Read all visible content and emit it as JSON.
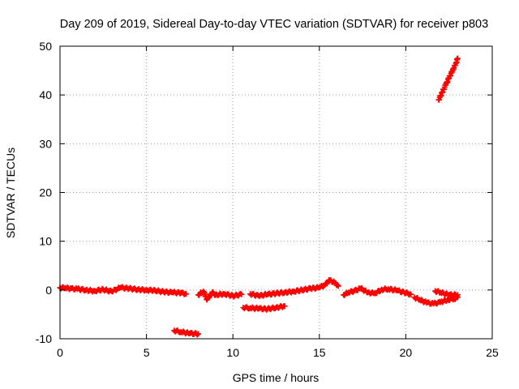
{
  "chart_data": {
    "type": "scatter",
    "title": "Day 209 of 2019, Sidereal Day-to-day VTEC variation (SDTVAR) for receiver p803",
    "xlabel": "GPS time / hours",
    "ylabel": "SDTVAR / TECUs",
    "xlim": [
      0,
      25
    ],
    "ylim": [
      -10,
      50
    ],
    "xticks": [
      0,
      5,
      10,
      15,
      20,
      25
    ],
    "yticks": [
      -10,
      0,
      10,
      20,
      30,
      40,
      50
    ],
    "grid": true,
    "legend": "none",
    "series": [
      {
        "color": "#ff0000",
        "marker": "plus",
        "segments": [
          {
            "points": [
              [
                0.0,
                0.5
              ],
              [
                0.3,
                0.4
              ],
              [
                0.6,
                0.3
              ],
              [
                1.0,
                0.2
              ],
              [
                1.5,
                0.0
              ],
              [
                2.0,
                -0.2
              ],
              [
                2.5,
                0.1
              ],
              [
                3.0,
                -0.3
              ],
              [
                3.5,
                0.5
              ],
              [
                4.0,
                0.3
              ],
              [
                4.5,
                0.1
              ],
              [
                5.0,
                0.0
              ],
              [
                5.5,
                -0.1
              ],
              [
                6.0,
                -0.4
              ],
              [
                6.5,
                -0.5
              ],
              [
                7.0,
                -0.6
              ],
              [
                7.3,
                -0.8
              ]
            ]
          },
          {
            "points": [
              [
                8.0,
                -1.0
              ],
              [
                8.3,
                -0.3
              ],
              [
                8.5,
                -2.0
              ],
              [
                8.8,
                -0.5
              ],
              [
                9.0,
                -1.0
              ],
              [
                9.5,
                -0.8
              ],
              [
                10.0,
                -1.2
              ],
              [
                10.5,
                -0.9
              ]
            ]
          },
          {
            "points": [
              [
                11.0,
                -0.8
              ],
              [
                11.5,
                -1.2
              ],
              [
                12.0,
                -0.9
              ],
              [
                12.5,
                -0.7
              ],
              [
                13.0,
                -0.5
              ],
              [
                13.5,
                -0.3
              ],
              [
                14.0,
                0.0
              ],
              [
                14.5,
                0.3
              ],
              [
                15.0,
                0.5
              ],
              [
                15.3,
                1.0
              ],
              [
                15.6,
                2.0
              ],
              [
                15.9,
                1.5
              ],
              [
                16.1,
                0.8
              ]
            ]
          },
          {
            "points": [
              [
                16.4,
                -1.0
              ],
              [
                16.7,
                -0.5
              ],
              [
                17.0,
                -0.2
              ],
              [
                17.4,
                0.3
              ],
              [
                17.8,
                -0.5
              ],
              [
                18.2,
                -0.7
              ],
              [
                18.6,
                0.1
              ],
              [
                19.0,
                0.2
              ],
              [
                19.5,
                -0.1
              ],
              [
                20.0,
                -0.6
              ],
              [
                20.3,
                -0.9
              ]
            ]
          },
          {
            "points": [
              [
                20.5,
                -1.5
              ],
              [
                20.8,
                -2.0
              ],
              [
                21.2,
                -2.6
              ],
              [
                21.6,
                -2.8
              ],
              [
                22.0,
                -2.5
              ],
              [
                22.4,
                -2.0
              ],
              [
                22.8,
                -1.8
              ],
              [
                23.0,
                -1.5
              ]
            ]
          },
          {
            "points": [
              [
                21.7,
                -0.2
              ],
              [
                22.0,
                -0.5
              ],
              [
                22.5,
                -1.0
              ],
              [
                23.0,
                -1.0
              ]
            ]
          },
          {
            "points": [
              [
                10.6,
                -3.6
              ],
              [
                11.0,
                -3.7
              ],
              [
                11.5,
                -3.8
              ],
              [
                12.0,
                -3.9
              ],
              [
                12.5,
                -3.6
              ],
              [
                13.0,
                -3.3
              ]
            ]
          },
          {
            "points": [
              [
                6.6,
                -8.3
              ],
              [
                7.0,
                -8.6
              ],
              [
                7.5,
                -8.9
              ],
              [
                8.0,
                -9.0
              ]
            ]
          },
          {
            "points": [
              [
                21.9,
                39.0
              ],
              [
                22.1,
                40.5
              ],
              [
                22.3,
                42.0
              ],
              [
                22.5,
                43.5
              ],
              [
                22.7,
                45.0
              ],
              [
                22.9,
                46.5
              ],
              [
                23.0,
                47.5
              ]
            ]
          }
        ]
      }
    ]
  }
}
